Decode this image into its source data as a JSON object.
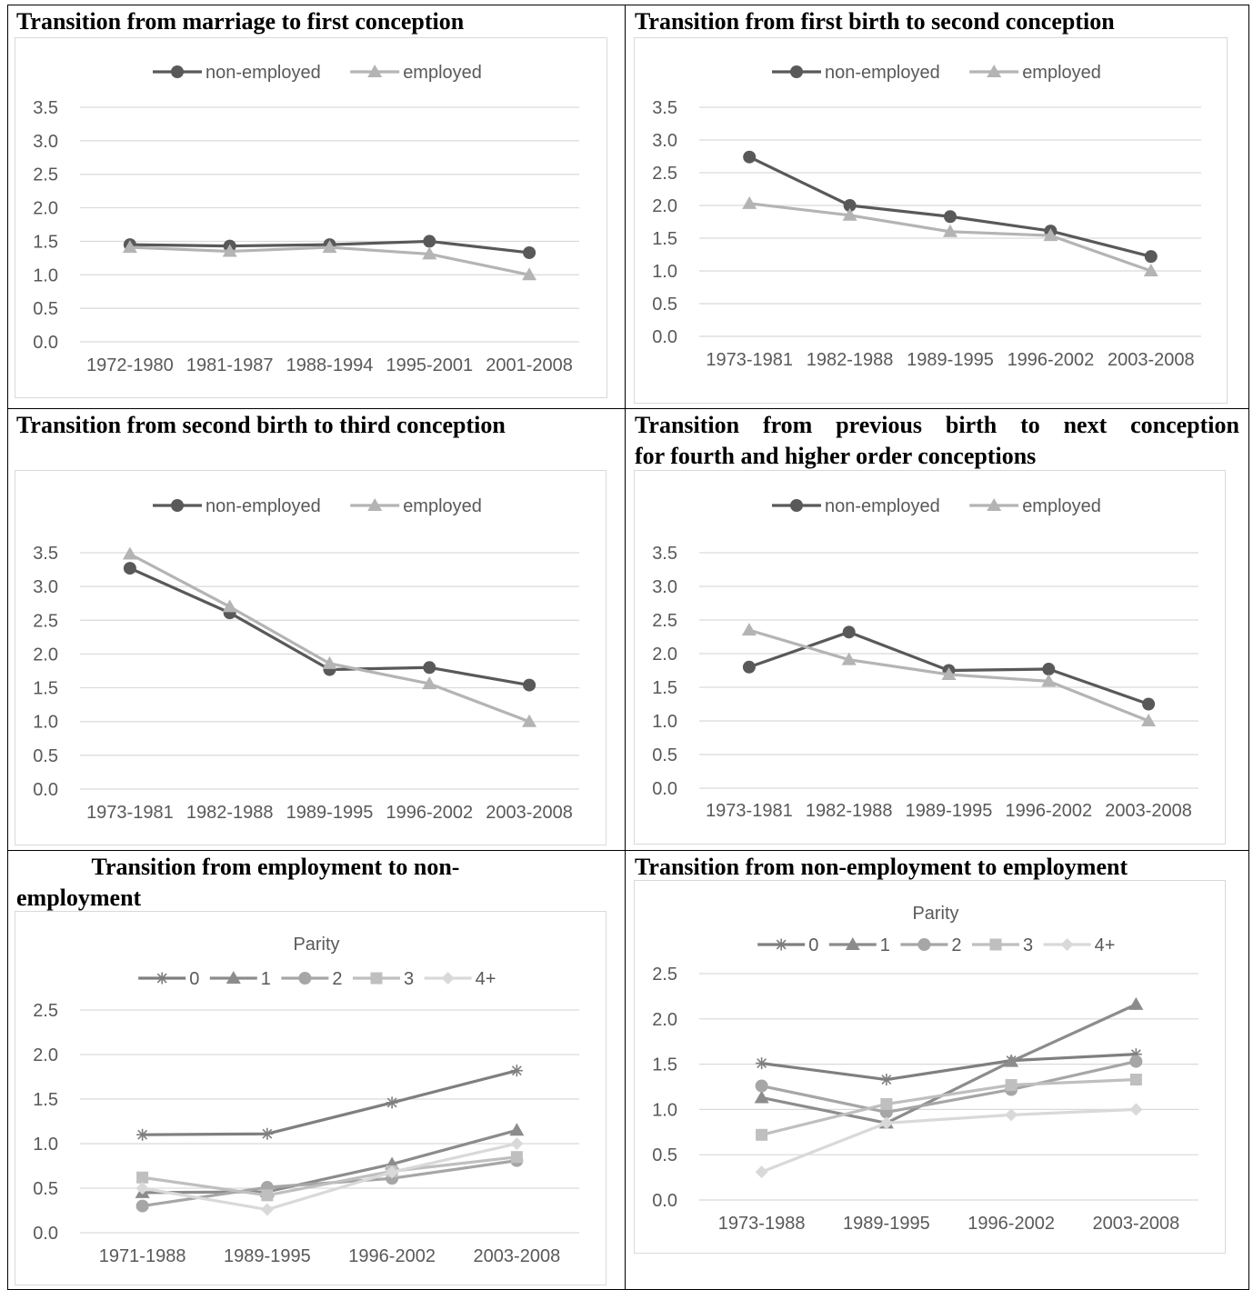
{
  "colors": {
    "dark": "#595959",
    "light": "#b4b4b4",
    "grid": "#d9d9d9",
    "axis": "#595959",
    "p0": "#7f7f7f",
    "p1": "#8c8c8c",
    "p2": "#a6a6a6",
    "p3": "#bfbfbf",
    "p4": "#d9d9d9"
  },
  "chart_data": [
    {
      "type": "line",
      "title": "Transition from marriage to first conception",
      "categories": [
        "1972-1980",
        "1981-1987",
        "1988-1994",
        "1995-2001",
        "2001-2008"
      ],
      "ylim": [
        0,
        3.5
      ],
      "yticks": [
        "0.0",
        "0.5",
        "1.0",
        "1.5",
        "2.0",
        "2.5",
        "3.0",
        "3.5"
      ],
      "grid": true,
      "legend": "top",
      "series": [
        {
          "name": "non-employed",
          "marker": "circle",
          "values": [
            1.45,
            1.43,
            1.45,
            1.5,
            1.33
          ]
        },
        {
          "name": "employed",
          "marker": "triangle",
          "values": [
            1.41,
            1.35,
            1.41,
            1.31,
            1.0
          ]
        }
      ]
    },
    {
      "type": "line",
      "title": "Transition from first birth to second conception",
      "categories": [
        "1973-1981",
        "1982-1988",
        "1989-1995",
        "1996-2002",
        "2003-2008"
      ],
      "ylim": [
        0,
        3.5
      ],
      "yticks": [
        "0.0",
        "0.5",
        "1.0",
        "1.5",
        "2.0",
        "2.5",
        "3.0",
        "3.5"
      ],
      "grid": true,
      "legend": "top",
      "series": [
        {
          "name": "non-employed",
          "marker": "circle",
          "values": [
            2.74,
            2.0,
            1.83,
            1.61,
            1.22
          ]
        },
        {
          "name": "employed",
          "marker": "triangle",
          "values": [
            2.03,
            1.85,
            1.6,
            1.54,
            1.0
          ]
        }
      ]
    },
    {
      "type": "line",
      "title": "Transition from second birth to third conception",
      "categories": [
        "1973-1981",
        "1982-1988",
        "1989-1995",
        "1996-2002",
        "2003-2008"
      ],
      "ylim": [
        0,
        3.5
      ],
      "yticks": [
        "0.0",
        "0.5",
        "1.0",
        "1.5",
        "2.0",
        "2.5",
        "3.0",
        "3.5"
      ],
      "grid": true,
      "legend": "top",
      "series": [
        {
          "name": "non-employed",
          "marker": "circle",
          "values": [
            3.27,
            2.61,
            1.77,
            1.8,
            1.54
          ]
        },
        {
          "name": "employed",
          "marker": "triangle",
          "values": [
            3.48,
            2.7,
            1.86,
            1.56,
            1.0
          ]
        }
      ]
    },
    {
      "type": "line",
      "title": "Transition from previous birth to next conception for fourth and higher order conceptions",
      "title_line1": "Transition from previous birth to next conception",
      "title_line2": "for fourth and higher order conceptions",
      "categories": [
        "1973-1981",
        "1982-1988",
        "1989-1995",
        "1996-2002",
        "2003-2008"
      ],
      "ylim": [
        0,
        3.5
      ],
      "yticks": [
        "0.0",
        "0.5",
        "1.0",
        "1.5",
        "2.0",
        "2.5",
        "3.0",
        "3.5"
      ],
      "grid": true,
      "legend": "top",
      "series": [
        {
          "name": "non-employed",
          "marker": "circle",
          "values": [
            1.8,
            2.32,
            1.75,
            1.77,
            1.25
          ]
        },
        {
          "name": "employed",
          "marker": "triangle",
          "values": [
            2.35,
            1.91,
            1.69,
            1.59,
            1.0
          ]
        }
      ]
    },
    {
      "type": "line",
      "title": "Transition from employment to non-employment",
      "title_line1": "Transition from employment to non-",
      "title_line2": "employment",
      "legend_title": "Parity",
      "categories": [
        "1971-1988",
        "1989-1995",
        "1996-2002",
        "2003-2008"
      ],
      "ylim": [
        0,
        2.5
      ],
      "yticks": [
        "0.0",
        "0.5",
        "1.0",
        "1.5",
        "2.0",
        "2.5"
      ],
      "grid": true,
      "legend": "top",
      "series": [
        {
          "name": "0",
          "marker": "star",
          "values": [
            1.1,
            1.11,
            1.46,
            1.82
          ]
        },
        {
          "name": "1",
          "marker": "triangle",
          "values": [
            0.45,
            0.46,
            0.77,
            1.15
          ]
        },
        {
          "name": "2",
          "marker": "circle",
          "values": [
            0.3,
            0.51,
            0.61,
            0.81
          ]
        },
        {
          "name": "3",
          "marker": "square",
          "values": [
            0.62,
            0.42,
            0.69,
            0.85
          ]
        },
        {
          "name": "4+",
          "marker": "diamond",
          "values": [
            0.5,
            0.26,
            0.68,
            1.0
          ]
        }
      ]
    },
    {
      "type": "line",
      "title": "Transition from non-employment to employment",
      "legend_title": "Parity",
      "categories": [
        "1973-1988",
        "1989-1995",
        "1996-2002",
        "2003-2008"
      ],
      "ylim": [
        0,
        2.5
      ],
      "yticks": [
        "0.0",
        "0.5",
        "1.0",
        "1.5",
        "2.0",
        "2.5"
      ],
      "grid": true,
      "legend": "top",
      "series": [
        {
          "name": "0",
          "marker": "star",
          "values": [
            1.51,
            1.33,
            1.54,
            1.61
          ]
        },
        {
          "name": "1",
          "marker": "triangle",
          "values": [
            1.13,
            0.85,
            1.53,
            2.16
          ]
        },
        {
          "name": "2",
          "marker": "circle",
          "values": [
            1.26,
            0.97,
            1.22,
            1.53
          ]
        },
        {
          "name": "3",
          "marker": "square",
          "values": [
            0.72,
            1.06,
            1.27,
            1.33
          ]
        },
        {
          "name": "4+",
          "marker": "diamond",
          "values": [
            0.31,
            0.85,
            0.94,
            1.0
          ]
        }
      ]
    }
  ]
}
